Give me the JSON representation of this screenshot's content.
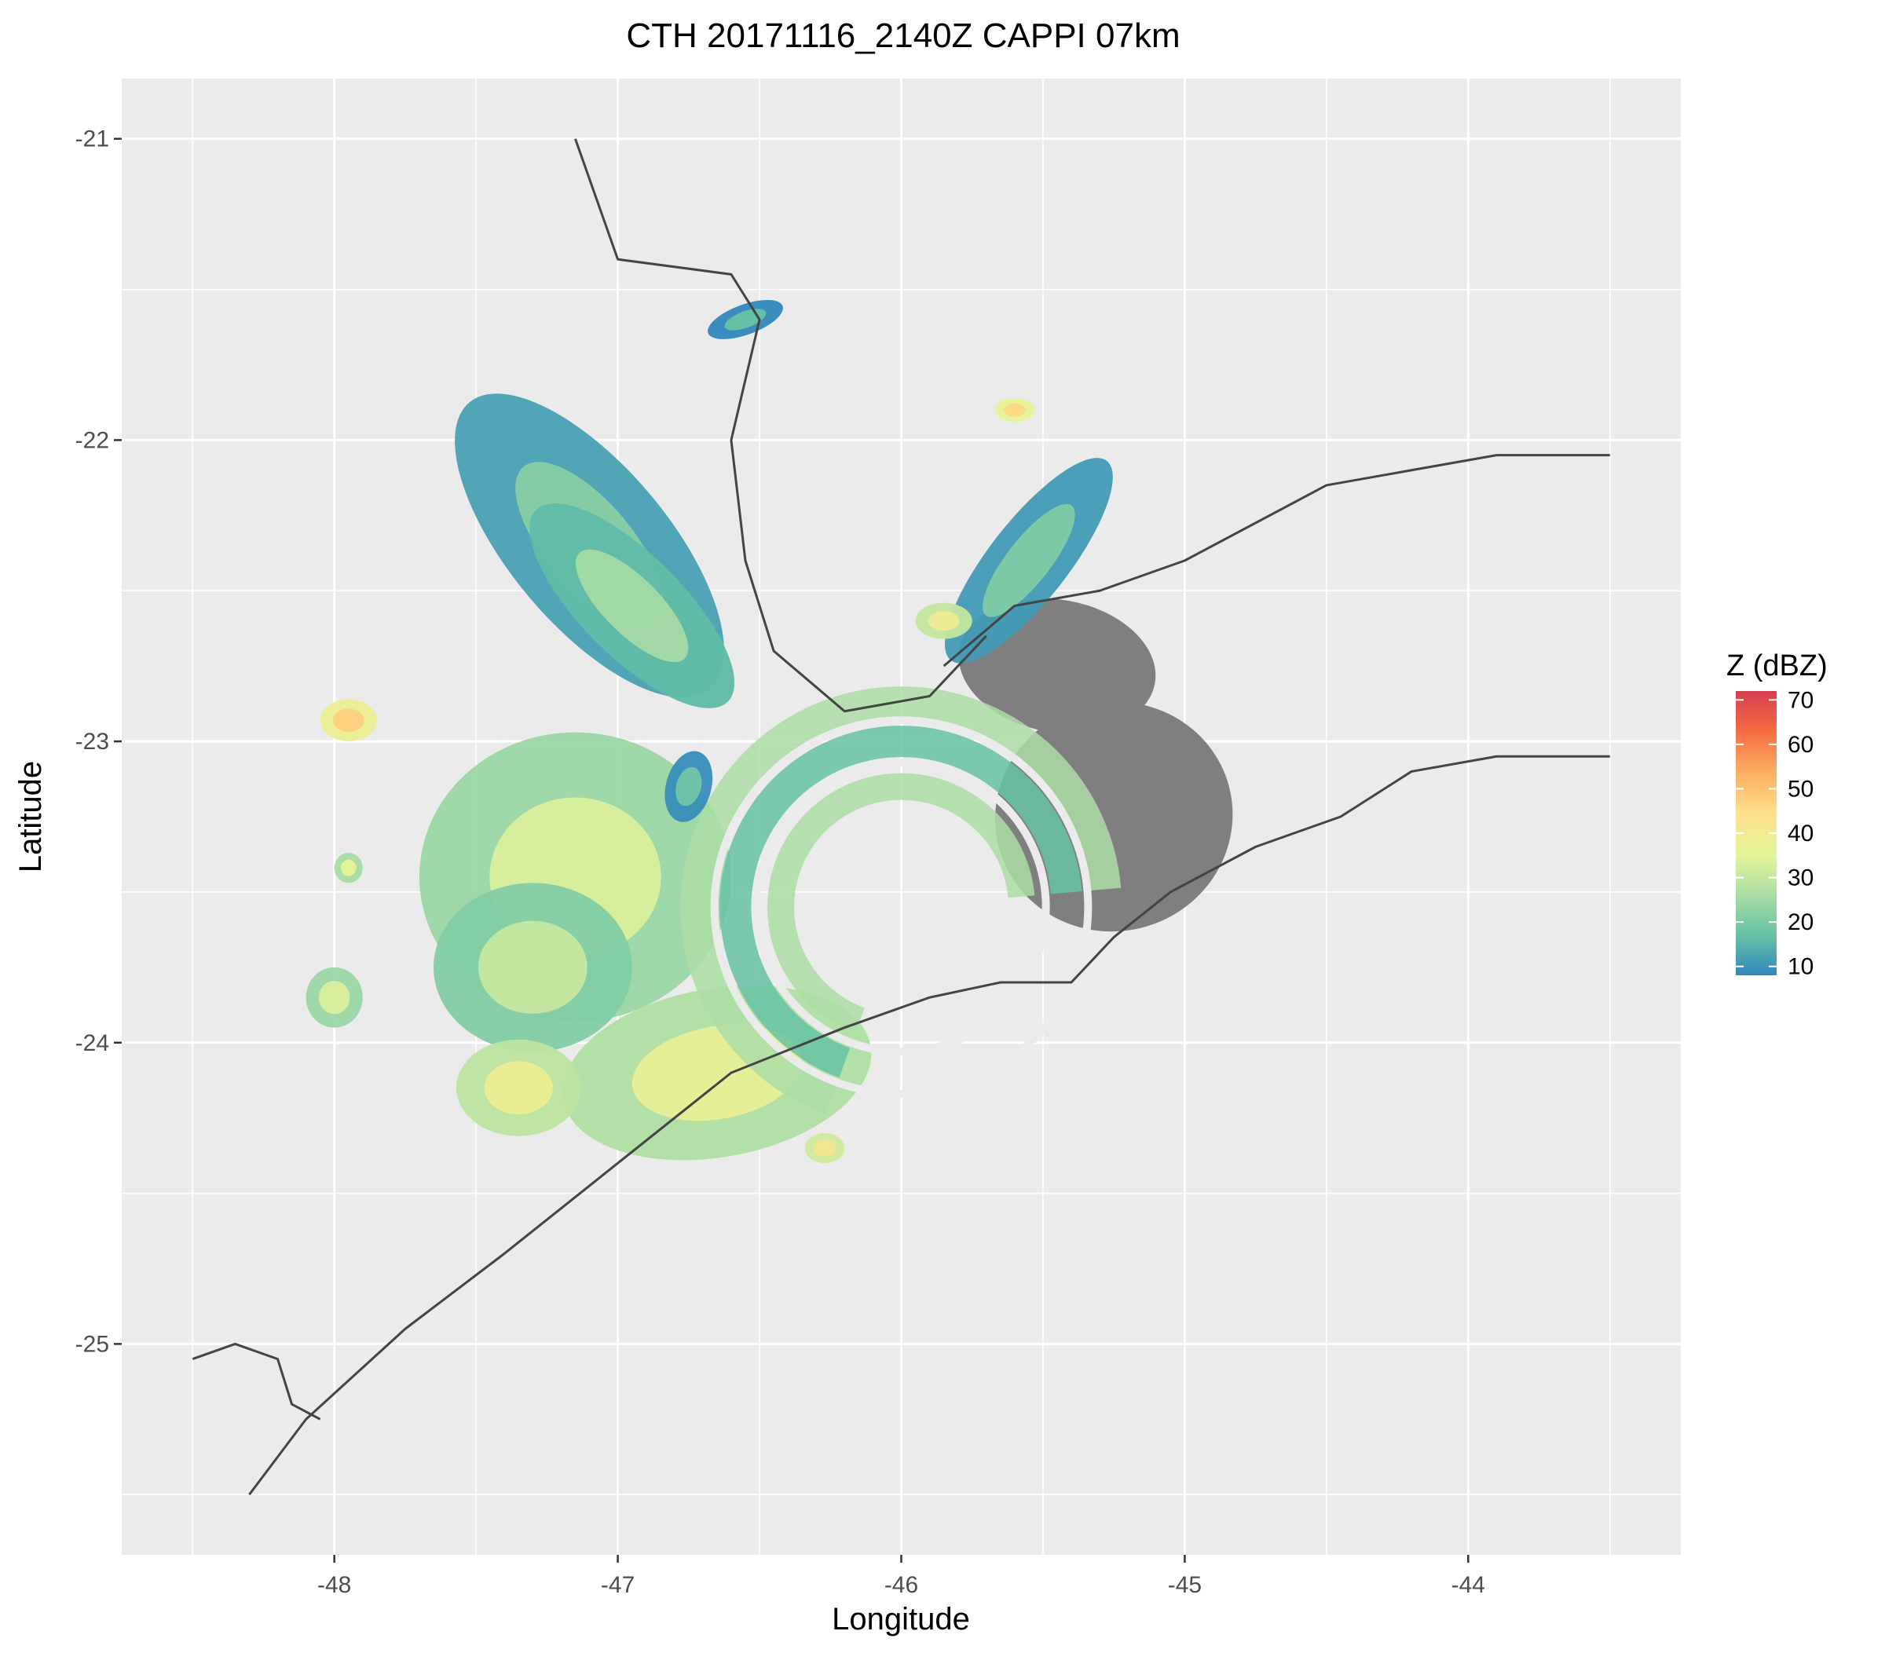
{
  "chart_data": {
    "type": "heatmap",
    "title": "CTH 20171116_2140Z  CAPPI 07km",
    "xlabel": "Longitude",
    "ylabel": "Latitude",
    "xlim": [
      -48.75,
      -43.25
    ],
    "ylim": [
      -25.7,
      -20.8
    ],
    "x_ticks": [
      -48,
      -47,
      -46,
      -45,
      -44
    ],
    "x_tick_labels": [
      "-48",
      "-47",
      "-46",
      "-45",
      "-44"
    ],
    "y_ticks": [
      -21,
      -22,
      -23,
      -24,
      -25
    ],
    "y_tick_labels": [
      "-21",
      "-22",
      "-23",
      "-24",
      "-25"
    ],
    "grid": true,
    "legend": {
      "title": "Z (dBZ)",
      "position": "right",
      "range": [
        8,
        72
      ],
      "ticks": [
        10,
        20,
        30,
        40,
        50,
        60,
        70
      ],
      "tick_labels": [
        "10",
        "20",
        "30",
        "40",
        "50",
        "60",
        "70"
      ],
      "colors": [
        "#3288bd",
        "#66c2a5",
        "#abdda4",
        "#e6f598",
        "#fee08b",
        "#fdae61",
        "#f46d43",
        "#d53e4f"
      ]
    },
    "colors": {
      "panel": "#ebebeb",
      "grid": "#ffffff",
      "no_echo": "#7f7f7f",
      "outline": "#444444"
    },
    "radar_center": [
      -46.0,
      -23.55
    ],
    "echoes": [
      {
        "name": "northwest band",
        "lon": -47.1,
        "lat": -22.35,
        "dlon": 0.28,
        "dlat": 0.62,
        "rot": -40,
        "dbz": 18
      },
      {
        "name": "northwest band streak",
        "lon": -46.95,
        "lat": -22.55,
        "dlon": 0.18,
        "dlat": 0.45,
        "rot": -45,
        "dbz": 22
      },
      {
        "name": "west core",
        "lon": -47.15,
        "lat": -23.45,
        "dlon": 0.55,
        "dlat": 0.48,
        "rot": 0,
        "dbz": 30
      },
      {
        "name": "west core south",
        "lon": -47.3,
        "lat": -23.75,
        "dlon": 0.35,
        "dlat": 0.28,
        "rot": 0,
        "dbz": 27
      },
      {
        "name": "southwest cluster",
        "lon": -46.65,
        "lat": -24.1,
        "dlon": 0.55,
        "dlat": 0.28,
        "rot": -10,
        "dbz": 33
      },
      {
        "name": "southwest fringe",
        "lon": -47.35,
        "lat": -24.15,
        "dlon": 0.22,
        "dlat": 0.16,
        "rot": 0,
        "dbz": 35
      },
      {
        "name": "northeast band",
        "lon": -45.55,
        "lat": -22.4,
        "dlon": 0.14,
        "dlat": 0.42,
        "rot": 38,
        "dbz": 17
      },
      {
        "name": "northeast cell",
        "lon": -45.85,
        "lat": -22.6,
        "dlon": 0.1,
        "dlat": 0.06,
        "rot": 0,
        "dbz": 36
      },
      {
        "name": "northern cell",
        "lon": -46.55,
        "lat": -21.6,
        "dlon": 0.14,
        "dlat": 0.05,
        "rot": -20,
        "dbz": 14
      },
      {
        "name": "isolated cell north",
        "lon": -45.6,
        "lat": -21.9,
        "dlon": 0.07,
        "dlat": 0.04,
        "rot": 0,
        "dbz": 42
      },
      {
        "name": "west cell",
        "lon": -47.95,
        "lat": -22.93,
        "dlon": 0.1,
        "dlat": 0.07,
        "rot": 0,
        "dbz": 44
      },
      {
        "name": "west cell small",
        "lon": -47.95,
        "lat": -23.42,
        "dlon": 0.05,
        "dlat": 0.05,
        "rot": 0,
        "dbz": 32
      },
      {
        "name": "far west cell",
        "lon": -48.0,
        "lat": -23.85,
        "dlon": 0.1,
        "dlat": 0.1,
        "rot": 0,
        "dbz": 30
      },
      {
        "name": "south cell",
        "lon": -46.27,
        "lat": -24.35,
        "dlon": 0.07,
        "dlat": 0.05,
        "rot": 0,
        "dbz": 38
      },
      {
        "name": "central small",
        "lon": -46.75,
        "lat": -23.15,
        "dlon": 0.08,
        "dlat": 0.12,
        "rot": 15,
        "dbz": 15
      }
    ],
    "no_echo_regions": [
      {
        "name": "east gray block",
        "lon": -45.25,
        "lat": -23.25,
        "dlon": 0.42,
        "dlat": 0.38,
        "rot": -15
      },
      {
        "name": "east gray edge",
        "lon": -45.45,
        "lat": -22.75,
        "dlon": 0.35,
        "dlat": 0.22,
        "rot": 10
      }
    ],
    "coastline": [
      [
        -48.3,
        -25.5
      ],
      [
        -48.1,
        -25.25
      ],
      [
        -47.75,
        -24.95
      ],
      [
        -47.4,
        -24.7
      ],
      [
        -47.0,
        -24.4
      ],
      [
        -46.6,
        -24.1
      ],
      [
        -46.2,
        -23.95
      ],
      [
        -45.9,
        -23.85
      ],
      [
        -45.65,
        -23.8
      ],
      [
        -45.4,
        -23.8
      ],
      [
        -45.25,
        -23.65
      ],
      [
        -45.05,
        -23.5
      ],
      [
        -44.75,
        -23.35
      ],
      [
        -44.45,
        -23.25
      ],
      [
        -44.2,
        -23.1
      ],
      [
        -43.9,
        -23.05
      ],
      [
        -43.5,
        -23.05
      ]
    ],
    "state_border_northeast": [
      [
        -45.85,
        -22.75
      ],
      [
        -45.6,
        -22.55
      ],
      [
        -45.3,
        -22.5
      ],
      [
        -45.0,
        -22.4
      ],
      [
        -44.8,
        -22.3
      ],
      [
        -44.5,
        -22.15
      ],
      [
        -44.2,
        -22.1
      ],
      [
        -43.9,
        -22.05
      ],
      [
        -43.5,
        -22.05
      ]
    ],
    "state_border_inland": [
      [
        -47.15,
        -21.0
      ],
      [
        -47.0,
        -21.4
      ],
      [
        -46.6,
        -21.45
      ],
      [
        -46.5,
        -21.6
      ],
      [
        -46.6,
        -22.0
      ],
      [
        -46.55,
        -22.4
      ],
      [
        -46.45,
        -22.7
      ],
      [
        -46.2,
        -22.9
      ],
      [
        -45.9,
        -22.85
      ],
      [
        -45.7,
        -22.65
      ]
    ],
    "state_border_south": [
      [
        -48.5,
        -25.05
      ],
      [
        -48.35,
        -25.0
      ],
      [
        -48.2,
        -25.05
      ],
      [
        -48.15,
        -25.2
      ],
      [
        -48.05,
        -25.25
      ]
    ]
  }
}
